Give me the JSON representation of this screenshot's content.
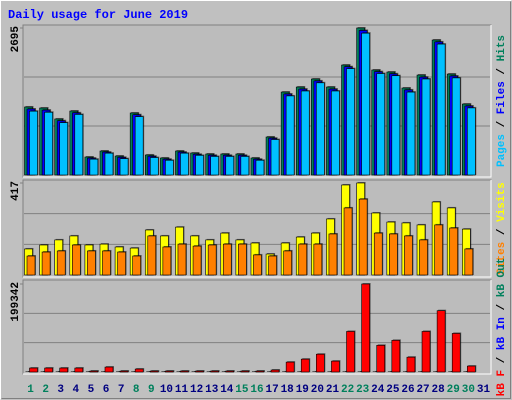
{
  "title": "Daily usage for June 2019",
  "legend_separator": " / ",
  "chart_data": [
    {
      "type": "bar",
      "ylim": [
        0,
        2695
      ],
      "yticks": [
        2695
      ],
      "grid": true,
      "series": [
        {
          "name": "Pages",
          "color": "#00c0ff",
          "values": [
            1170,
            1150,
            960,
            1110,
            290,
            400,
            300,
            1070,
            320,
            270,
            400,
            360,
            340,
            340,
            340,
            270,
            650,
            1450,
            1540,
            1690,
            1540,
            1950,
            2600,
            1860,
            1820,
            1520,
            1760,
            2400,
            1780,
            1230,
            null
          ]
        },
        {
          "name": "Files",
          "color": "#0000ff",
          "values": [
            1210,
            1190,
            995,
            1140,
            310,
            420,
            325,
            1105,
            345,
            290,
            420,
            380,
            362,
            362,
            362,
            290,
            675,
            1485,
            1575,
            1725,
            1575,
            1985,
            2650,
            1895,
            1855,
            1560,
            1795,
            2440,
            1815,
            1265,
            null
          ]
        },
        {
          "name": "Hits",
          "color": "#00805c",
          "values": [
            1247,
            1228,
            1027,
            1173,
            330,
            440,
            348,
            1137,
            367,
            312,
            440,
            403,
            385,
            385,
            385,
            312,
            697,
            1521,
            1613,
            1760,
            1613,
            2016,
            2695,
            1925,
            1888,
            1595,
            1833,
            2475,
            1851,
            1301,
            null
          ]
        }
      ]
    },
    {
      "type": "bar",
      "ylim": [
        0,
        417
      ],
      "yticks": [
        417
      ],
      "grid": true,
      "series": [
        {
          "name": "Sites",
          "color": "#ff8000",
          "values": [
            86,
            104,
            109,
            136,
            109,
            109,
            104,
            86,
            177,
            127,
            140,
            131,
            136,
            140,
            140,
            91,
            86,
            109,
            140,
            140,
            186,
            304,
            344,
            190,
            186,
            177,
            159,
            227,
            213,
            118,
            null
          ]
        },
        {
          "name": "Visits",
          "color": "#ffff00",
          "values": [
            118,
            136,
            159,
            177,
            136,
            140,
            127,
            122,
            204,
            177,
            217,
            177,
            159,
            190,
            159,
            145,
            95,
            145,
            172,
            190,
            254,
            408,
            417,
            281,
            240,
            236,
            227,
            331,
            304,
            208,
            null
          ]
        }
      ]
    },
    {
      "type": "bar",
      "ylim": [
        0,
        199342
      ],
      "yticks": [
        199342
      ],
      "grid": true,
      "categories": [
        "1",
        "2",
        "3",
        "4",
        "5",
        "6",
        "7",
        "8",
        "9",
        "10",
        "11",
        "12",
        "13",
        "14",
        "15",
        "16",
        "17",
        "18",
        "19",
        "20",
        "21",
        "22",
        "23",
        "24",
        "25",
        "26",
        "27",
        "28",
        "29",
        "30",
        "31"
      ],
      "category_colors": [
        "#00805c",
        "#00805c",
        "#000080",
        "#000080",
        "#000080",
        "#000080",
        "#000080",
        "#00805c",
        "#00805c",
        "#000080",
        "#000080",
        "#000080",
        "#000080",
        "#000080",
        "#00805c",
        "#00805c",
        "#000080",
        "#000080",
        "#000080",
        "#000080",
        "#000080",
        "#00805c",
        "#00805c",
        "#000080",
        "#000080",
        "#000080",
        "#000080",
        "#000080",
        "#00805c",
        "#00805c",
        "#000080"
      ],
      "series": [
        {
          "name": "kB F",
          "color": "#ff0000",
          "values": [
            8960,
            8960,
            8960,
            8960,
            2240,
            11200,
            2240,
            6720,
            2240,
            2240,
            2240,
            2240,
            2240,
            2240,
            2240,
            2240,
            4480,
            22400,
            29120,
            40320,
            24640,
            91840,
            199342,
            60480,
            71680,
            33600,
            91840,
            138880,
            87360,
            13440,
            null
          ]
        },
        {
          "name": "kB In",
          "color": "#0000ff",
          "values": [
            0,
            0,
            0,
            0,
            0,
            0,
            0,
            0,
            0,
            0,
            0,
            0,
            0,
            0,
            0,
            0,
            0,
            0,
            0,
            0,
            0,
            0,
            0,
            0,
            0,
            0,
            0,
            0,
            0,
            0,
            null
          ]
        },
        {
          "name": "kB Out",
          "color": "#00805c",
          "values": [
            0,
            0,
            0,
            0,
            0,
            0,
            0,
            0,
            0,
            0,
            0,
            0,
            0,
            0,
            0,
            0,
            0,
            0,
            0,
            0,
            0,
            0,
            0,
            0,
            0,
            0,
            0,
            0,
            0,
            0,
            null
          ]
        }
      ]
    }
  ]
}
